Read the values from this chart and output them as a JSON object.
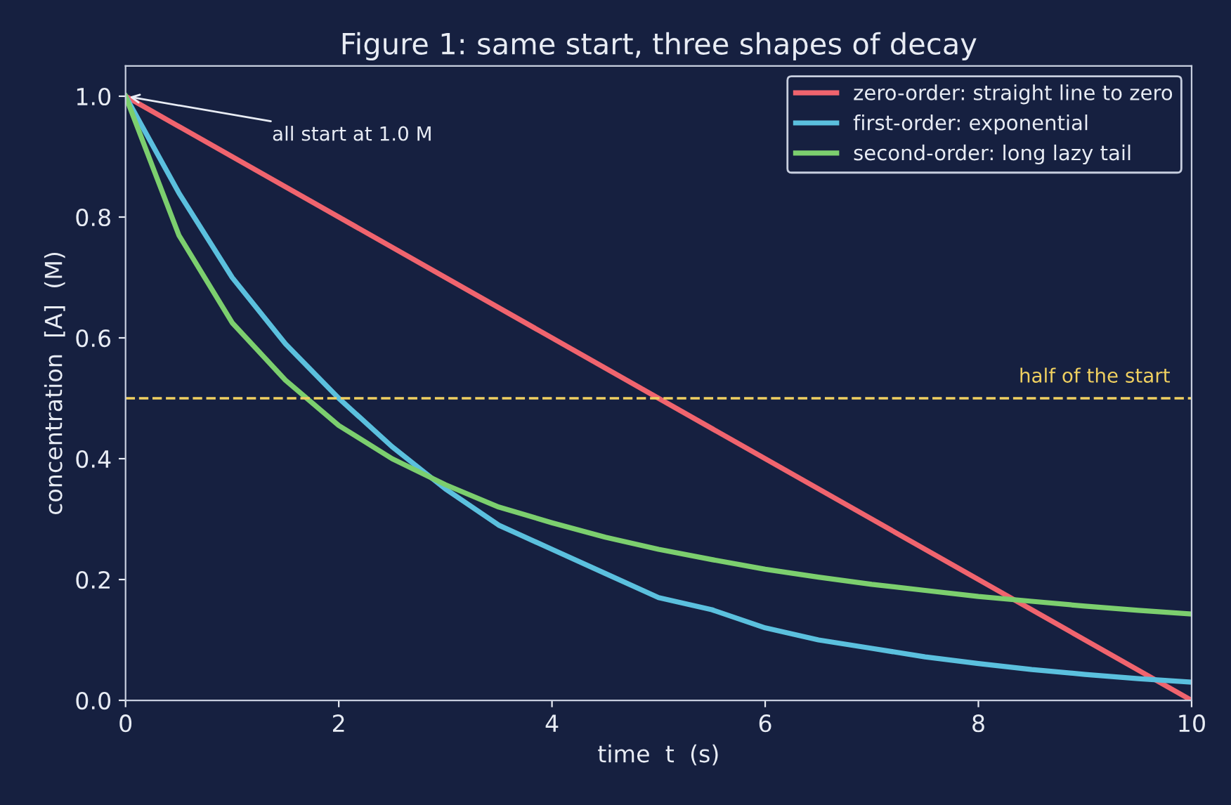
{
  "chart_data": {
    "type": "line",
    "title": "Figure 1: same start, three shapes of decay",
    "xlabel": "time  t  (s)",
    "ylabel": "concentration  [A]  (M)",
    "xlim": [
      0,
      10
    ],
    "ylim": [
      0,
      1.05
    ],
    "xticks": [
      0,
      2,
      4,
      6,
      8,
      10
    ],
    "yticks": [
      {
        "value": 0,
        "label": "0.0"
      },
      {
        "value": 0.2,
        "label": "0.2"
      },
      {
        "value": 0.4,
        "label": "0.4"
      },
      {
        "value": 0.6,
        "label": "0.6"
      },
      {
        "value": 0.8,
        "label": "0.8"
      },
      {
        "value": 1.0,
        "label": "1.0"
      }
    ],
    "grid": false,
    "legend": "top right",
    "marker": "none",
    "line_style": "solid",
    "series": [
      {
        "name": "zero-order: straight line to zero",
        "color": "#f0646e",
        "x": [
          0,
          10
        ],
        "values": [
          1.0,
          0.0
        ]
      },
      {
        "name": "first-order: exponential",
        "color": "#5bc0de",
        "x": [
          0,
          0.5,
          1,
          1.5,
          2,
          2.5,
          3,
          3.5,
          4,
          4.5,
          5,
          5.5,
          6,
          6.5,
          7,
          7.5,
          8,
          8.5,
          9,
          9.5,
          10
        ],
        "values": [
          1.0,
          0.84,
          0.7,
          0.59,
          0.5,
          0.42,
          0.35,
          0.29,
          0.25,
          0.21,
          0.17,
          0.15,
          0.12,
          0.1,
          0.086,
          0.072,
          0.061,
          0.051,
          0.043,
          0.036,
          0.03
        ]
      },
      {
        "name": "second-order: long lazy tail",
        "color": "#7ccf6e",
        "x": [
          0,
          0.5,
          1,
          1.5,
          2,
          2.5,
          3,
          3.5,
          4,
          4.5,
          5,
          5.5,
          6,
          6.5,
          7,
          7.5,
          8,
          8.5,
          9,
          9.5,
          10
        ],
        "values": [
          1.0,
          0.77,
          0.625,
          0.53,
          0.455,
          0.4,
          0.357,
          0.32,
          0.294,
          0.27,
          0.25,
          0.233,
          0.217,
          0.204,
          0.192,
          0.182,
          0.172,
          0.164,
          0.156,
          0.149,
          0.143
        ]
      }
    ],
    "ref_lines": [
      {
        "axis": "y",
        "value": 0.5,
        "label": "half of the start",
        "color": "#f0d060",
        "line_style": "dashed"
      }
    ],
    "annotations": [
      {
        "text": "all start at 1.0 M",
        "x": 0,
        "y": 1.0
      }
    ]
  }
}
